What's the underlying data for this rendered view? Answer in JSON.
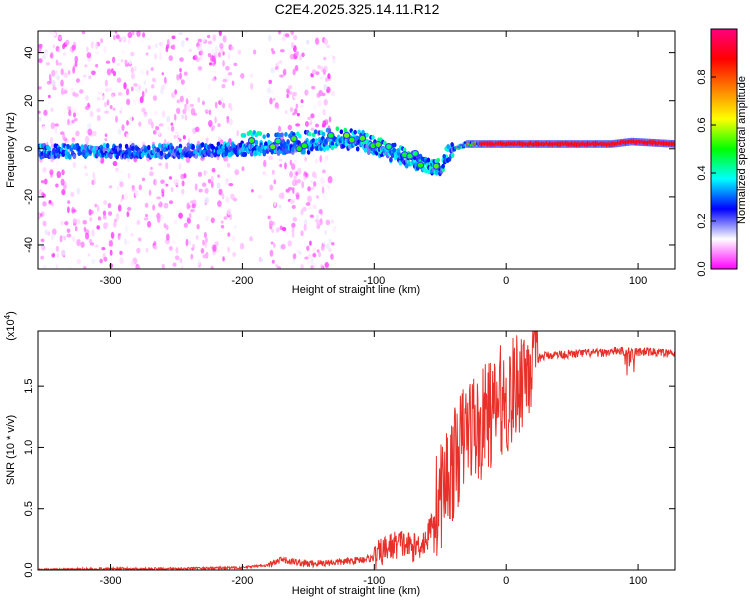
{
  "figure": {
    "title": "C2E4.2025.325.14.11.R12"
  },
  "chart_data": [
    {
      "type": "heatmap",
      "title": "C2E4.2025.325.14.11.R12",
      "xlabel": "Height of straight line (km)",
      "ylabel": "Frequency (Hz)",
      "xlim": [
        -355,
        128
      ],
      "ylim": [
        -50,
        49
      ],
      "xticks": [
        -300,
        -200,
        -100,
        0,
        100
      ],
      "yticks": [
        -40,
        -20,
        0,
        20,
        40
      ],
      "colorbar": {
        "label": "Normalized spectral amplitude",
        "range": [
          0.0,
          1.0
        ],
        "ticks": [
          0.0,
          0.2,
          0.4,
          0.6,
          0.8
        ],
        "colormap": [
          "#ff00ff",
          "#ffffff",
          "#0000ff",
          "#00ffff",
          "#00ff00",
          "#ffff00",
          "#ff8000",
          "#ff0000",
          "#ff0080"
        ]
      },
      "series": [
        {
          "description_ridge": "frequency centroid (Hz) vs height (km)",
          "x": [
            -355,
            -300,
            -250,
            -200,
            -150,
            -130,
            -110,
            -90,
            -75,
            -60,
            -50,
            -45,
            -40,
            -30,
            -20,
            0,
            50,
            80,
            95,
            128
          ],
          "y": [
            -1,
            -1,
            -1,
            0,
            1,
            3,
            2,
            -2,
            -5,
            -7,
            -9,
            -3,
            0,
            2,
            2,
            2,
            2,
            2,
            3,
            2
          ]
        }
      ]
    },
    {
      "type": "line",
      "xlabel": "Height of straight line (km)",
      "ylabel": "SNR (10 * v/v)",
      "yscale_label": "(x10",
      "yscale_exp": "4",
      "xlim": [
        -355,
        128
      ],
      "ylim": [
        0,
        1.95
      ],
      "xticks": [
        -300,
        -200,
        -100,
        0,
        100
      ],
      "yticks": [
        0.0,
        0.5,
        1.0,
        1.5
      ],
      "ytick_labels": [
        "0.0",
        "0.5",
        "1.0",
        "1.5"
      ],
      "color": "#e8302a",
      "x": [
        -355,
        -300,
        -250,
        -200,
        -180,
        -170,
        -150,
        -120,
        -100,
        -90,
        -80,
        -70,
        -60,
        -55,
        -50,
        -45,
        -40,
        -35,
        -30,
        -25,
        -20,
        -15,
        -10,
        -5,
        0,
        5,
        10,
        15,
        20,
        25,
        30,
        40,
        50,
        60,
        70,
        80,
        85,
        90,
        95,
        100,
        110,
        120,
        128
      ],
      "y": [
        0.0,
        0.01,
        0.01,
        0.02,
        0.04,
        0.08,
        0.05,
        0.07,
        0.1,
        0.18,
        0.22,
        0.18,
        0.25,
        0.45,
        0.6,
        0.75,
        0.85,
        1.0,
        1.15,
        1.2,
        1.1,
        1.3,
        1.25,
        1.4,
        1.35,
        1.45,
        1.55,
        1.65,
        1.7,
        1.73,
        1.75,
        1.76,
        1.76,
        1.77,
        1.77,
        1.78,
        1.79,
        1.78,
        1.8,
        1.78,
        1.78,
        1.77,
        1.76
      ]
    }
  ]
}
